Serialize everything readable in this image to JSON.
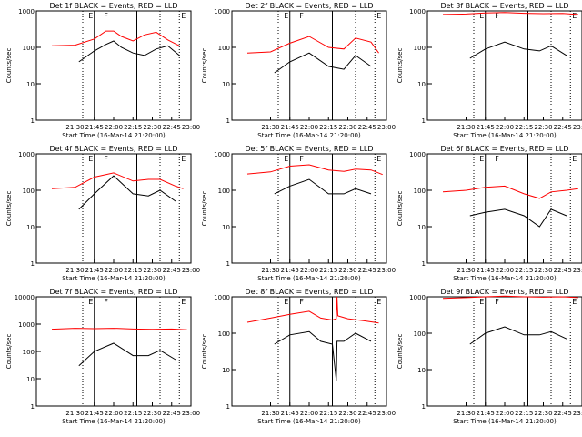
{
  "chart_data": [
    {
      "title": "Det 1f BLACK = Events, RED = LLD",
      "ylabel": "Counts/sec",
      "xlabel": "Start Time (16-Mar-14 21:20:00)",
      "xticks": [
        "21:30",
        "21:45",
        "22:00",
        "22:15",
        "22:30",
        "22:45",
        "23:00"
      ],
      "yticks": [
        "1",
        "10",
        "100",
        "1000"
      ],
      "ylim": [
        1,
        1000
      ],
      "scale": "log",
      "markers": [
        "E",
        "F",
        "E"
      ],
      "series": [
        {
          "color": "#ff0000",
          "x": [
            21.2,
            21.5,
            21.75,
            21.9,
            22.0,
            22.1,
            22.25,
            22.4,
            22.55,
            22.7,
            22.85
          ],
          "y": [
            110,
            115,
            170,
            280,
            280,
            200,
            150,
            220,
            260,
            160,
            110
          ]
        },
        {
          "color": "#000000",
          "x": [
            21.55,
            21.75,
            21.9,
            22.0,
            22.1,
            22.25,
            22.4,
            22.55,
            22.7,
            22.85
          ],
          "y": [
            40,
            80,
            120,
            150,
            100,
            70,
            60,
            90,
            110,
            60
          ]
        }
      ]
    },
    {
      "title": "Det 2f BLACK = Events, RED = LLD",
      "ylabel": "Counts/sec",
      "xlabel": "Start Time (16-Mar-14 21:20:00)",
      "xticks": [
        "21:30",
        "21:45",
        "22:00",
        "22:15",
        "22:30",
        "22:45",
        "23:00"
      ],
      "yticks": [
        "1",
        "10",
        "100",
        "1000"
      ],
      "ylim": [
        1,
        1000
      ],
      "scale": "log",
      "markers": [
        "E",
        "F",
        "E"
      ],
      "series": [
        {
          "color": "#ff0000",
          "x": [
            21.2,
            21.5,
            21.75,
            22.0,
            22.25,
            22.45,
            22.6,
            22.8,
            22.9
          ],
          "y": [
            70,
            75,
            130,
            200,
            100,
            90,
            180,
            140,
            70
          ]
        },
        {
          "color": "#000000",
          "x": [
            21.55,
            21.75,
            22.0,
            22.25,
            22.45,
            22.6,
            22.8
          ],
          "y": [
            20,
            40,
            70,
            30,
            25,
            60,
            30
          ]
        }
      ]
    },
    {
      "title": "Det 3f BLACK = Events, RED = LLD",
      "ylabel": "Counts/sec",
      "xlabel": "Start Time (16-Mar-14 21:20:00)",
      "xticks": [
        "21:30",
        "21:45",
        "22:00",
        "22:15",
        "22:30",
        "22:45",
        "23:00"
      ],
      "yticks": [
        "1",
        "10",
        "100",
        "1000"
      ],
      "ylim": [
        1,
        1000
      ],
      "scale": "log",
      "markers": [
        "E",
        "F",
        "E"
      ],
      "series": [
        {
          "color": "#ff0000",
          "x": [
            21.2,
            21.5,
            21.75,
            22.0,
            22.25,
            22.5,
            22.75,
            22.95
          ],
          "y": [
            800,
            820,
            880,
            900,
            860,
            840,
            850,
            800
          ]
        },
        {
          "color": "#000000",
          "x": [
            21.55,
            21.75,
            22.0,
            22.25,
            22.45,
            22.6,
            22.8
          ],
          "y": [
            50,
            90,
            140,
            90,
            80,
            110,
            60
          ]
        }
      ]
    },
    {
      "title": "Det 4f BLACK = Events, RED = LLD",
      "ylabel": "Counts/sec",
      "xlabel": "Start Time (16-Mar-14 21:20:00)",
      "xticks": [
        "21:30",
        "21:45",
        "22:00",
        "22:15",
        "22:30",
        "22:45",
        "23:00"
      ],
      "yticks": [
        "1",
        "10",
        "100",
        "1000"
      ],
      "ylim": [
        1,
        1000
      ],
      "scale": "log",
      "markers": [
        "E",
        "F",
        "E"
      ],
      "series": [
        {
          "color": "#ff0000",
          "x": [
            21.2,
            21.5,
            21.75,
            22.0,
            22.25,
            22.45,
            22.6,
            22.8,
            22.9
          ],
          "y": [
            110,
            120,
            230,
            300,
            180,
            200,
            200,
            130,
            110
          ]
        },
        {
          "color": "#000000",
          "x": [
            21.55,
            21.75,
            22.0,
            22.25,
            22.45,
            22.6,
            22.8
          ],
          "y": [
            30,
            80,
            250,
            80,
            70,
            100,
            50
          ]
        }
      ]
    },
    {
      "title": "Det 5f BLACK = Events, RED = LLD",
      "ylabel": "Counts/sec",
      "xlabel": "Start Time (16-Mar-14 21:20:00)",
      "xticks": [
        "21:30",
        "21:45",
        "22:00",
        "22:15",
        "22:30",
        "22:45",
        "23:00"
      ],
      "yticks": [
        "1",
        "10",
        "100",
        "1000"
      ],
      "ylim": [
        1,
        1000
      ],
      "scale": "log",
      "markers": [
        "E",
        "F",
        "E"
      ],
      "series": [
        {
          "color": "#ff0000",
          "x": [
            21.2,
            21.5,
            21.75,
            22.0,
            22.25,
            22.45,
            22.6,
            22.8,
            22.95
          ],
          "y": [
            280,
            320,
            460,
            500,
            360,
            330,
            380,
            360,
            270
          ]
        },
        {
          "color": "#000000",
          "x": [
            21.55,
            21.75,
            22.0,
            22.25,
            22.45,
            22.6,
            22.8
          ],
          "y": [
            80,
            130,
            200,
            80,
            80,
            110,
            80
          ]
        }
      ]
    },
    {
      "title": "Det 6f BLACK = Events, RED = LLD",
      "ylabel": "Counts/sec",
      "xlabel": "Start Time (16-Mar-14 21:20:00)",
      "xticks": [
        "21:30",
        "21:45",
        "22:00",
        "22:15",
        "22:30",
        "22:45",
        "23:00"
      ],
      "yticks": [
        "1",
        "10",
        "100",
        "1000"
      ],
      "ylim": [
        1,
        1000
      ],
      "scale": "log",
      "markers": [
        "E",
        "F",
        "E"
      ],
      "series": [
        {
          "color": "#ff0000",
          "x": [
            21.2,
            21.5,
            21.75,
            22.0,
            22.25,
            22.45,
            22.6,
            22.8,
            22.95
          ],
          "y": [
            90,
            100,
            120,
            130,
            80,
            60,
            90,
            100,
            110
          ]
        },
        {
          "color": "#000000",
          "x": [
            21.55,
            21.75,
            22.0,
            22.25,
            22.45,
            22.6,
            22.8
          ],
          "y": [
            20,
            25,
            30,
            20,
            10,
            30,
            20
          ]
        }
      ]
    },
    {
      "title": "Det 7f BLACK = Events, RED = LLD",
      "ylabel": "Counts/sec",
      "xlabel": "Start Time (16-Mar-14 21:20:00)",
      "xticks": [
        "21:30",
        "21:45",
        "22:00",
        "22:15",
        "22:30",
        "22:45",
        "23:00"
      ],
      "yticks": [
        "1",
        "10",
        "100",
        "1000",
        "10000"
      ],
      "ylim": [
        1,
        10000
      ],
      "scale": "log",
      "markers": [
        "E",
        "F",
        "E"
      ],
      "series": [
        {
          "color": "#ff0000",
          "x": [
            21.2,
            21.5,
            21.75,
            22.0,
            22.25,
            22.5,
            22.75,
            22.95
          ],
          "y": [
            650,
            700,
            680,
            700,
            660,
            640,
            660,
            620
          ]
        },
        {
          "color": "#000000",
          "x": [
            21.55,
            21.75,
            22.0,
            22.25,
            22.45,
            22.6,
            22.8
          ],
          "y": [
            30,
            100,
            200,
            70,
            70,
            110,
            50
          ]
        }
      ]
    },
    {
      "title": "Det 8f BLACK = Events, RED = LLD",
      "ylabel": "Counts/sec",
      "xlabel": "Start Time (16-Mar-14 21:20:00)",
      "xticks": [
        "21:30",
        "21:45",
        "22:00",
        "22:15",
        "22:30",
        "22:45",
        "23:00"
      ],
      "yticks": [
        "1",
        "10",
        "100",
        "1000"
      ],
      "ylim": [
        1,
        1000
      ],
      "scale": "log",
      "markers": [
        "E",
        "F",
        "E"
      ],
      "series": [
        {
          "color": "#ff0000",
          "x": [
            21.2,
            21.5,
            21.75,
            22.0,
            22.15,
            22.3,
            22.35,
            22.36,
            22.37,
            22.5,
            22.7,
            22.9
          ],
          "y": [
            200,
            260,
            330,
            400,
            260,
            230,
            250,
            1000,
            300,
            250,
            220,
            190
          ]
        },
        {
          "color": "#000000",
          "x": [
            21.55,
            21.75,
            22.0,
            22.15,
            22.3,
            22.35,
            22.36,
            22.45,
            22.6,
            22.8
          ],
          "y": [
            50,
            90,
            110,
            60,
            50,
            5,
            60,
            60,
            100,
            60
          ]
        }
      ]
    },
    {
      "title": "Det 9f BLACK = Events, RED = LLD",
      "ylabel": "Counts/sec",
      "xlabel": "Start Time (16-Mar-14 21:20:00)",
      "xticks": [
        "21:30",
        "21:45",
        "22:00",
        "22:15",
        "22:30",
        "22:45",
        "23:00"
      ],
      "yticks": [
        "1",
        "10",
        "100",
        "1000"
      ],
      "ylim": [
        1,
        1000
      ],
      "scale": "log",
      "markers": [
        "E",
        "F",
        "E"
      ],
      "series": [
        {
          "color": "#ff0000",
          "x": [
            21.2,
            21.5,
            21.75,
            22.0,
            22.25,
            22.5,
            22.75,
            22.95
          ],
          "y": [
            900,
            950,
            1000,
            1050,
            1000,
            980,
            1000,
            950
          ]
        },
        {
          "color": "#000000",
          "x": [
            21.55,
            21.75,
            22.0,
            22.25,
            22.45,
            22.6,
            22.8
          ],
          "y": [
            50,
            100,
            150,
            90,
            90,
            110,
            70
          ]
        }
      ]
    }
  ]
}
